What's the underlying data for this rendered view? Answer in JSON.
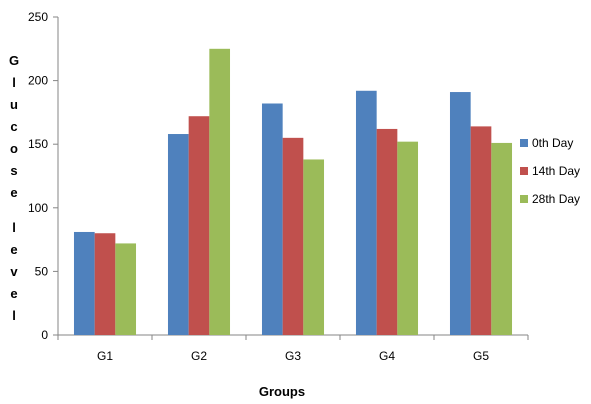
{
  "chart_data": {
    "type": "bar",
    "categories": [
      "G1",
      "G2",
      "G3",
      "G4",
      "G5"
    ],
    "series": [
      {
        "name": "0th Day",
        "values": [
          81,
          158,
          182,
          192,
          191
        ],
        "color": "#4F81BD"
      },
      {
        "name": "14th Day",
        "values": [
          80,
          172,
          155,
          162,
          164
        ],
        "color": "#C0504D"
      },
      {
        "name": "28th Day",
        "values": [
          72,
          225,
          138,
          152,
          151
        ],
        "color": "#9BBB59"
      }
    ],
    "title": "",
    "xlabel": "Groups",
    "ylabel": "Glucose level",
    "ylim": [
      0,
      250
    ],
    "yticks": [
      0,
      50,
      100,
      150,
      200,
      250
    ],
    "grid": false,
    "legend_position": "right"
  }
}
